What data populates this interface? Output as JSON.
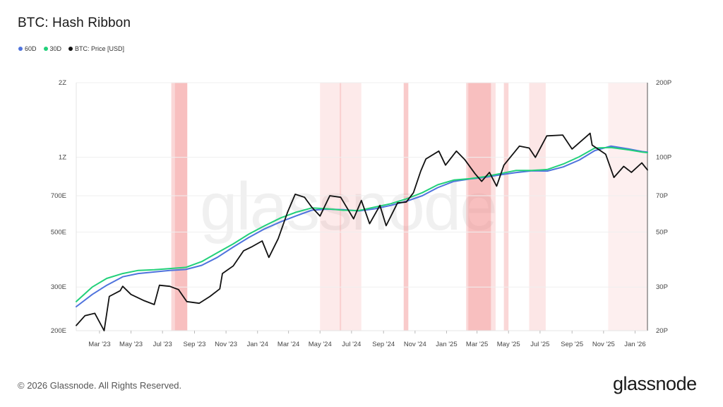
{
  "header": {
    "title": "BTC: Hash Ribbon"
  },
  "legend": [
    {
      "label": "60D",
      "color": "#4f73dd"
    },
    {
      "label": "30D",
      "color": "#22d07a"
    },
    {
      "label": "BTC: Price [USD]",
      "color": "#111111"
    }
  ],
  "footer": {
    "copyright": "© 2026 Glassnode. All Rights Reserved."
  },
  "brand": {
    "logo_text": "glassnode",
    "watermark_text": "glassnode"
  },
  "chart_data": {
    "type": "line",
    "title": "BTC: Hash Ribbon",
    "x_axis": {
      "ticks": [
        "Mar '23",
        "May '23",
        "Jul '23",
        "Sep '23",
        "Nov '23",
        "Jan '24",
        "Mar '24",
        "May '24",
        "Jul '24",
        "Sep '24",
        "Nov '24",
        "Jan '25",
        "Mar '25",
        "May '25",
        "Jul '25",
        "Sep '25",
        "Nov '25",
        "Jan '26"
      ],
      "range": [
        "2023-01-15",
        "2026-01-25"
      ]
    },
    "y_left": {
      "scale": "log",
      "ticks": [
        {
          "label": "2Z",
          "value": 2000
        },
        {
          "label": "1Z",
          "value": 1000
        },
        {
          "label": "700E",
          "value": 700
        },
        {
          "label": "500E",
          "value": 500
        },
        {
          "label": "300E",
          "value": 300
        },
        {
          "label": "200E",
          "value": 200
        }
      ],
      "range": [
        200,
        2000
      ],
      "unit_note": "hash rate (E = 1e18, Z = 1e21); values given in E"
    },
    "y_right": {
      "scale": "log",
      "ticks": [
        {
          "label": "200P",
          "value": 200
        },
        {
          "label": "100P",
          "value": 100
        },
        {
          "label": "70P",
          "value": 70
        },
        {
          "label": "50P",
          "value": 50
        },
        {
          "label": "30P",
          "value": 30
        },
        {
          "label": "20P",
          "value": 20
        }
      ],
      "range": [
        20,
        200
      ],
      "unit_note": "price axis; values given in P"
    },
    "capitulation_bands": [
      {
        "start": "2023-07-18",
        "end": "2023-07-25",
        "intensity": 0.35
      },
      {
        "start": "2023-07-25",
        "end": "2023-08-18",
        "intensity": 0.55
      },
      {
        "start": "2024-05-01",
        "end": "2024-06-08",
        "intensity": 0.18
      },
      {
        "start": "2024-06-08",
        "end": "2024-06-11",
        "intensity": 0.4
      },
      {
        "start": "2024-06-11",
        "end": "2024-07-20",
        "intensity": 0.18
      },
      {
        "start": "2024-10-10",
        "end": "2024-10-19",
        "intensity": 0.45
      },
      {
        "start": "2025-02-08",
        "end": "2025-02-12",
        "intensity": 0.35
      },
      {
        "start": "2025-02-12",
        "end": "2025-03-28",
        "intensity": 0.55
      },
      {
        "start": "2025-03-28",
        "end": "2025-04-06",
        "intensity": 0.25
      },
      {
        "start": "2025-04-22",
        "end": "2025-05-01",
        "intensity": 0.35
      },
      {
        "start": "2025-06-10",
        "end": "2025-07-12",
        "intensity": 0.22
      },
      {
        "start": "2025-11-10",
        "end": "2026-01-25",
        "intensity": 0.14
      }
    ],
    "series": [
      {
        "name": "60D",
        "axis": "left",
        "color": "#4f73dd",
        "points": [
          [
            "2023-01-15",
            250
          ],
          [
            "2023-02-15",
            280
          ],
          [
            "2023-03-15",
            305
          ],
          [
            "2023-04-15",
            330
          ],
          [
            "2023-05-15",
            340
          ],
          [
            "2023-06-15",
            345
          ],
          [
            "2023-07-15",
            350
          ],
          [
            "2023-08-15",
            353
          ],
          [
            "2023-09-15",
            367
          ],
          [
            "2023-10-15",
            395
          ],
          [
            "2023-11-15",
            435
          ],
          [
            "2023-12-15",
            475
          ],
          [
            "2024-01-15",
            515
          ],
          [
            "2024-02-15",
            550
          ],
          [
            "2024-03-15",
            580
          ],
          [
            "2024-04-15",
            612
          ],
          [
            "2024-05-15",
            618
          ],
          [
            "2024-06-15",
            615
          ],
          [
            "2024-07-15",
            608
          ],
          [
            "2024-08-15",
            620
          ],
          [
            "2024-09-15",
            640
          ],
          [
            "2024-10-15",
            665
          ],
          [
            "2024-11-15",
            700
          ],
          [
            "2024-12-15",
            755
          ],
          [
            "2025-01-15",
            800
          ],
          [
            "2025-02-15",
            818
          ],
          [
            "2025-03-15",
            830
          ],
          [
            "2025-04-15",
            850
          ],
          [
            "2025-05-15",
            868
          ],
          [
            "2025-06-15",
            882
          ],
          [
            "2025-07-15",
            880
          ],
          [
            "2025-08-15",
            915
          ],
          [
            "2025-09-15",
            975
          ],
          [
            "2025-10-15",
            1065
          ],
          [
            "2025-11-15",
            1110
          ],
          [
            "2025-12-15",
            1085
          ],
          [
            "2026-01-15",
            1055
          ],
          [
            "2026-01-25",
            1050
          ]
        ]
      },
      {
        "name": "30D",
        "axis": "left",
        "color": "#22d07a",
        "points": [
          [
            "2023-01-15",
            262
          ],
          [
            "2023-02-15",
            300
          ],
          [
            "2023-03-15",
            325
          ],
          [
            "2023-04-15",
            340
          ],
          [
            "2023-05-15",
            350
          ],
          [
            "2023-06-15",
            352
          ],
          [
            "2023-07-15",
            356
          ],
          [
            "2023-08-15",
            360
          ],
          [
            "2023-09-15",
            380
          ],
          [
            "2023-10-15",
            412
          ],
          [
            "2023-11-15",
            448
          ],
          [
            "2023-12-15",
            490
          ],
          [
            "2024-01-15",
            530
          ],
          [
            "2024-02-15",
            570
          ],
          [
            "2024-03-15",
            600
          ],
          [
            "2024-04-15",
            625
          ],
          [
            "2024-05-15",
            620
          ],
          [
            "2024-06-15",
            612
          ],
          [
            "2024-07-15",
            610
          ],
          [
            "2024-08-15",
            630
          ],
          [
            "2024-09-15",
            650
          ],
          [
            "2024-10-15",
            680
          ],
          [
            "2024-11-15",
            720
          ],
          [
            "2024-12-15",
            775
          ],
          [
            "2025-01-15",
            810
          ],
          [
            "2025-02-15",
            820
          ],
          [
            "2025-03-15",
            835
          ],
          [
            "2025-04-15",
            860
          ],
          [
            "2025-05-15",
            885
          ],
          [
            "2025-06-15",
            885
          ],
          [
            "2025-07-15",
            893
          ],
          [
            "2025-08-15",
            940
          ],
          [
            "2025-09-15",
            1005
          ],
          [
            "2025-10-15",
            1090
          ],
          [
            "2025-11-15",
            1095
          ],
          [
            "2025-12-15",
            1075
          ],
          [
            "2026-01-15",
            1050
          ],
          [
            "2026-01-25",
            1045
          ]
        ]
      },
      {
        "name": "BTC: Price [USD]",
        "axis": "right",
        "color": "#111111",
        "points": [
          [
            "2023-01-15",
            21
          ],
          [
            "2023-02-01",
            23
          ],
          [
            "2023-02-20",
            23.5
          ],
          [
            "2023-03-10",
            20
          ],
          [
            "2023-03-20",
            27.5
          ],
          [
            "2023-04-10",
            29
          ],
          [
            "2023-04-15",
            30.2
          ],
          [
            "2023-05-01",
            28
          ],
          [
            "2023-05-25",
            26.5
          ],
          [
            "2023-06-15",
            25.5
          ],
          [
            "2023-06-25",
            30.5
          ],
          [
            "2023-07-15",
            30.2
          ],
          [
            "2023-08-01",
            29.3
          ],
          [
            "2023-08-17",
            26.2
          ],
          [
            "2023-09-10",
            25.8
          ],
          [
            "2023-10-01",
            27.5
          ],
          [
            "2023-10-20",
            29.5
          ],
          [
            "2023-10-25",
            34
          ],
          [
            "2023-11-15",
            36.5
          ],
          [
            "2023-12-05",
            42
          ],
          [
            "2023-12-20",
            43.5
          ],
          [
            "2024-01-10",
            46
          ],
          [
            "2024-01-23",
            39.5
          ],
          [
            "2024-02-10",
            47
          ],
          [
            "2024-02-28",
            60
          ],
          [
            "2024-03-14",
            71
          ],
          [
            "2024-04-01",
            69
          ],
          [
            "2024-04-15",
            63
          ],
          [
            "2024-05-01",
            58
          ],
          [
            "2024-05-20",
            70
          ],
          [
            "2024-06-10",
            69
          ],
          [
            "2024-07-05",
            56.5
          ],
          [
            "2024-07-20",
            67
          ],
          [
            "2024-08-05",
            54
          ],
          [
            "2024-08-25",
            64
          ],
          [
            "2024-09-06",
            53
          ],
          [
            "2024-09-28",
            65.5
          ],
          [
            "2024-10-15",
            66
          ],
          [
            "2024-10-29",
            72
          ],
          [
            "2024-11-12",
            88
          ],
          [
            "2024-11-22",
            98.5
          ],
          [
            "2024-12-17",
            106
          ],
          [
            "2024-12-30",
            93
          ],
          [
            "2025-01-20",
            106
          ],
          [
            "2025-02-05",
            98
          ],
          [
            "2025-02-25",
            86
          ],
          [
            "2025-03-10",
            80
          ],
          [
            "2025-03-25",
            87
          ],
          [
            "2025-04-08",
            76.5
          ],
          [
            "2025-04-22",
            93
          ],
          [
            "2025-05-22",
            111
          ],
          [
            "2025-06-10",
            109
          ],
          [
            "2025-06-22",
            100
          ],
          [
            "2025-07-14",
            122
          ],
          [
            "2025-08-14",
            123
          ],
          [
            "2025-09-01",
            108
          ],
          [
            "2025-10-06",
            125
          ],
          [
            "2025-10-10",
            112
          ],
          [
            "2025-11-05",
            103
          ],
          [
            "2025-11-21",
            83
          ],
          [
            "2025-12-10",
            92
          ],
          [
            "2025-12-25",
            87
          ],
          [
            "2026-01-14",
            95
          ],
          [
            "2026-01-25",
            89
          ]
        ]
      }
    ],
    "grid": true,
    "legend_position": "top-left"
  }
}
